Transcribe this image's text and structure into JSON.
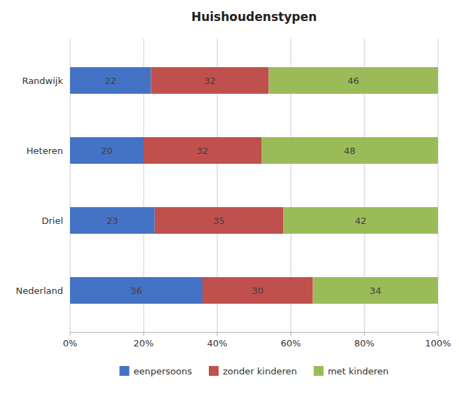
{
  "chart_data": {
    "type": "bar",
    "orientation": "horizontal",
    "stacked": true,
    "title": "Huishoudenstypen",
    "categories": [
      "Nederland",
      "Driel",
      "Heteren",
      "Randwijk"
    ],
    "series": [
      {
        "name": "eenpersoons",
        "color": "#4472C4",
        "values": [
          36,
          23,
          20,
          22
        ]
      },
      {
        "name": "zonder kinderen",
        "color": "#C0504D",
        "values": [
          30,
          35,
          32,
          32
        ]
      },
      {
        "name": "met kinderen",
        "color": "#9BBB59",
        "values": [
          34,
          42,
          48,
          46
        ]
      }
    ],
    "xlim": [
      0,
      100
    ],
    "xticks": [
      {
        "value": 0,
        "label": "0%"
      },
      {
        "value": 20,
        "label": "20%"
      },
      {
        "value": 40,
        "label": "40%"
      },
      {
        "value": 60,
        "label": "60%"
      },
      {
        "value": 80,
        "label": "80%"
      },
      {
        "value": 100,
        "label": "100%"
      }
    ],
    "grid": true,
    "data_labels": true,
    "legend": "bottom"
  }
}
